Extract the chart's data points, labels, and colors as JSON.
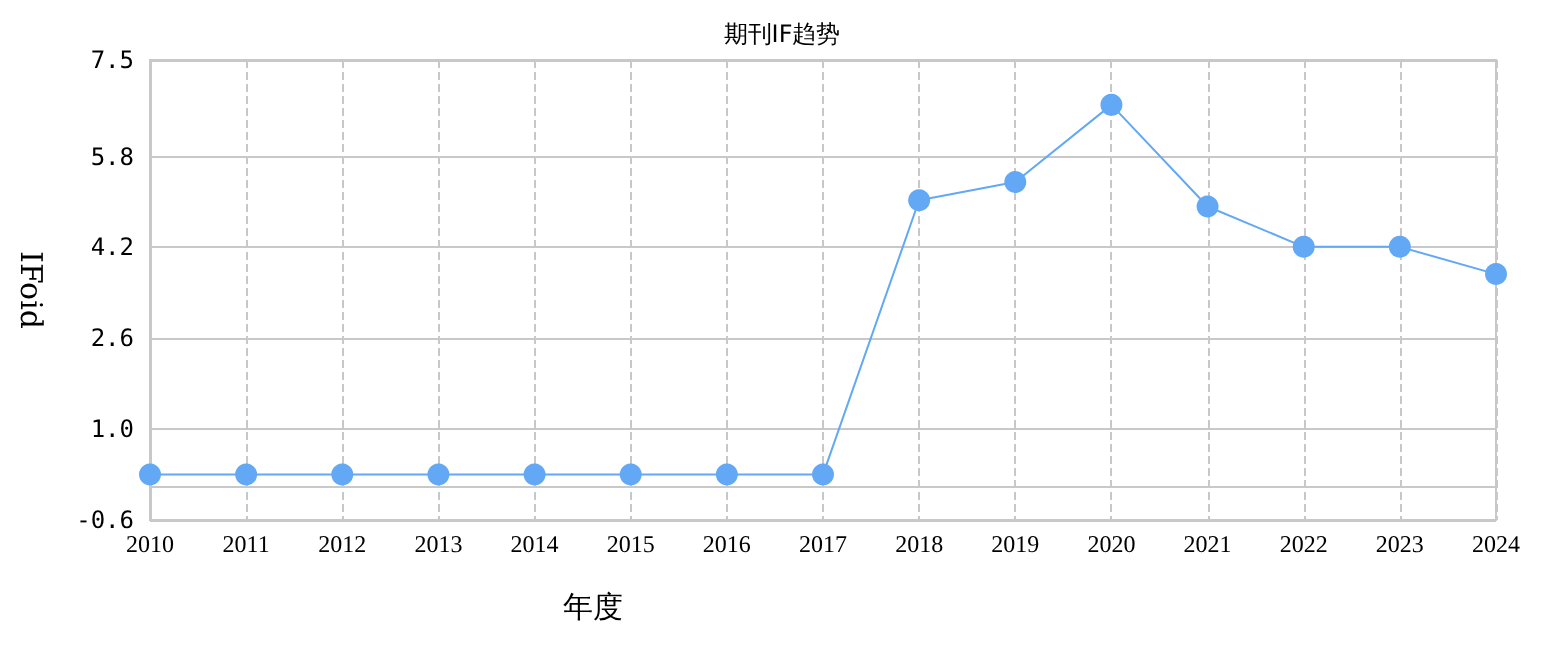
{
  "chart_data": {
    "type": "line",
    "title": "期刊IF趋势",
    "xlabel": "年度",
    "ylabel": "IFoid",
    "categories": [
      "2010",
      "2011",
      "2012",
      "2013",
      "2014",
      "2015",
      "2016",
      "2017",
      "2018",
      "2019",
      "2020",
      "2021",
      "2022",
      "2023",
      "2024"
    ],
    "series": [
      {
        "color": "#62a8f4",
        "values": [
          0.2,
          0.2,
          0.2,
          0.2,
          0.2,
          0.2,
          0.2,
          0.2,
          5.03,
          5.35,
          6.71,
          4.92,
          4.21,
          4.21,
          3.73
        ]
      }
    ],
    "ylim": [
      -0.6,
      7.5
    ],
    "yticks": [
      -0.6,
      {
        "value": 1,
        "label": "1.0"
      },
      2.6,
      4.2,
      5.8,
      7.5
    ],
    "grid": true,
    "marker": "circle",
    "line_style": "solid"
  }
}
